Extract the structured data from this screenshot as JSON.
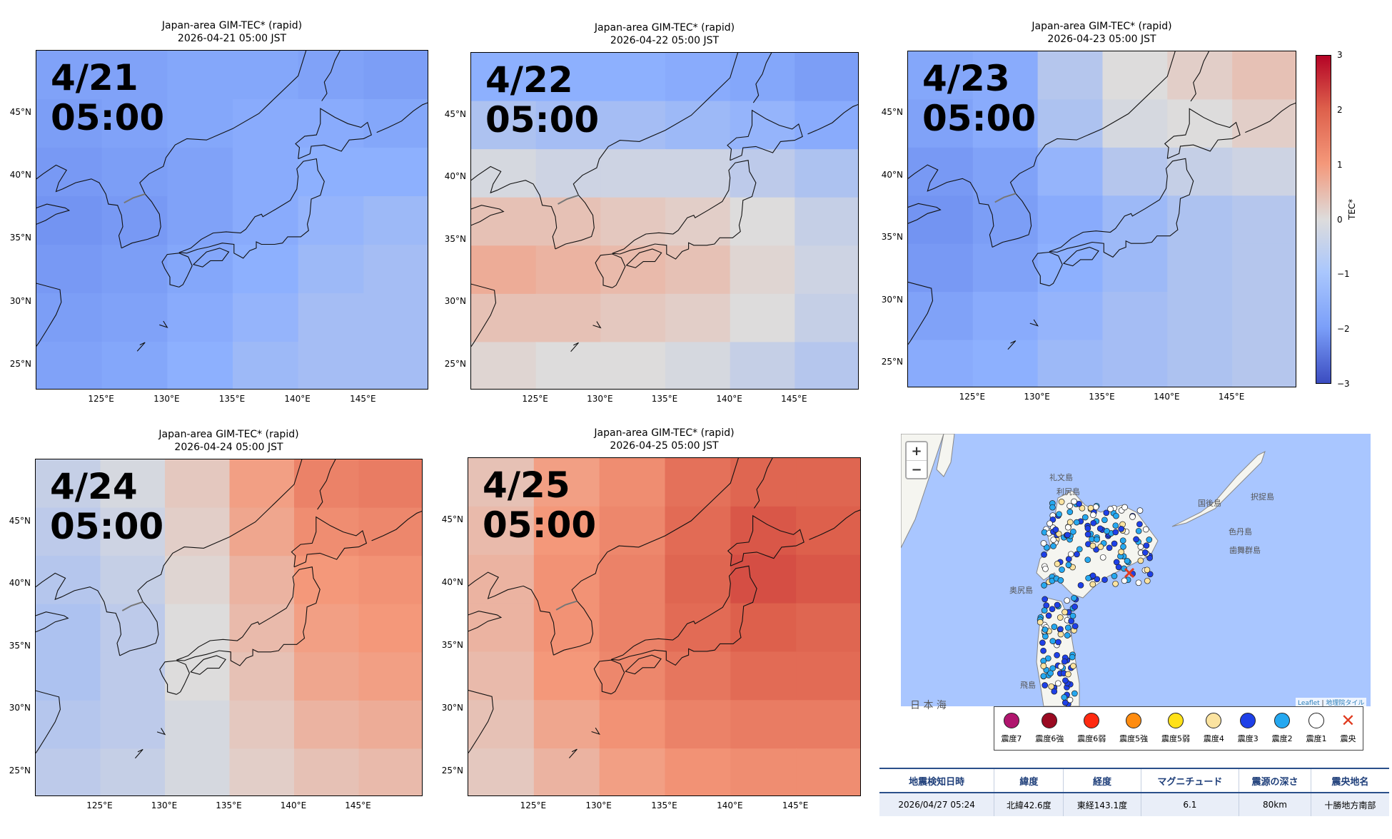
{
  "chart_data": [
    {
      "type": "heatmap",
      "title": "Japan-area GIM-TEC* (rapid)",
      "subtitle": "2026-04-21 05:00 JST",
      "overlay": [
        "4/21",
        "05:00"
      ],
      "x_ticks": [
        "125°E",
        "130°E",
        "135°E",
        "140°E",
        "145°E"
      ],
      "y_ticks": [
        "45°N",
        "40°N",
        "35°N",
        "30°N",
        "25°N"
      ],
      "xlim": [
        120,
        150
      ],
      "ylim": [
        23,
        50
      ],
      "value_range": [
        -3,
        3
      ],
      "grid": [
        [
          -1.3,
          -1.3,
          -1.2,
          -1.2,
          -1.3,
          -1.4
        ],
        [
          -1.4,
          -1.3,
          -1.2,
          -1.1,
          -1.1,
          -1.2
        ],
        [
          -1.5,
          -1.4,
          -1.3,
          -1.1,
          -1.0,
          -1.0
        ],
        [
          -1.6,
          -1.5,
          -1.3,
          -1.1,
          -0.9,
          -0.8
        ],
        [
          -1.5,
          -1.4,
          -1.2,
          -1.0,
          -0.8,
          -0.7
        ],
        [
          -1.4,
          -1.3,
          -1.1,
          -0.9,
          -0.7,
          -0.7
        ],
        [
          -1.3,
          -1.2,
          -1.0,
          -0.8,
          -0.7,
          -0.7
        ]
      ]
    },
    {
      "type": "heatmap",
      "title": "Japan-area GIM-TEC* (rapid)",
      "subtitle": "2026-04-22 05:00 JST",
      "overlay": [
        "4/22",
        "05:00"
      ],
      "x_ticks": [
        "125°E",
        "130°E",
        "135°E",
        "140°E",
        "145°E"
      ],
      "y_ticks": [
        "45°N",
        "40°N",
        "35°N",
        "30°N",
        "25°N"
      ],
      "xlim": [
        120,
        150
      ],
      "ylim": [
        23,
        50
      ],
      "value_range": [
        -3,
        3
      ],
      "grid": [
        [
          -1.0,
          -1.0,
          -1.0,
          -1.1,
          -1.2,
          -1.4
        ],
        [
          -0.6,
          -0.7,
          -0.7,
          -0.8,
          -0.9,
          -1.1
        ],
        [
          -0.1,
          -0.2,
          -0.2,
          -0.2,
          -0.4,
          -0.6
        ],
        [
          0.4,
          0.4,
          0.3,
          0.2,
          0.0,
          -0.3
        ],
        [
          0.7,
          0.6,
          0.5,
          0.4,
          0.1,
          -0.2
        ],
        [
          0.4,
          0.4,
          0.3,
          0.2,
          0.0,
          -0.3
        ],
        [
          0.1,
          0.0,
          0.0,
          -0.1,
          -0.3,
          -0.5
        ]
      ]
    },
    {
      "type": "heatmap",
      "title": "Japan-area GIM-TEC* (rapid)",
      "subtitle": "2026-04-23 05:00 JST",
      "overlay": [
        "4/23",
        "05:00"
      ],
      "x_ticks": [
        "125°E",
        "130°E",
        "135°E",
        "140°E",
        "145°E"
      ],
      "y_ticks": [
        "45°N",
        "40°N",
        "35°N",
        "30°N",
        "25°N"
      ],
      "xlim": [
        120,
        150
      ],
      "ylim": [
        23,
        50
      ],
      "value_range": [
        -3,
        3
      ],
      "grid": [
        [
          -1.2,
          -1.1,
          -0.5,
          0.0,
          0.2,
          0.4
        ],
        [
          -1.3,
          -1.1,
          -0.6,
          -0.1,
          0.0,
          0.2
        ],
        [
          -1.5,
          -1.3,
          -0.9,
          -0.5,
          -0.3,
          -0.2
        ],
        [
          -1.6,
          -1.4,
          -1.1,
          -0.8,
          -0.6,
          -0.5
        ],
        [
          -1.5,
          -1.3,
          -1.0,
          -0.8,
          -0.6,
          -0.5
        ],
        [
          -1.3,
          -1.1,
          -0.9,
          -0.7,
          -0.6,
          -0.5
        ],
        [
          -1.1,
          -1.0,
          -0.8,
          -0.7,
          -0.6,
          -0.5
        ]
      ],
      "colorbar": {
        "label": "TEC*",
        "ticks": [
          "3",
          "2",
          "1",
          "0",
          "−1",
          "−2",
          "−3"
        ]
      }
    },
    {
      "type": "heatmap",
      "title": "Japan-area GIM-TEC* (rapid)",
      "subtitle": "2026-04-24 05:00 JST",
      "overlay": [
        "4/24",
        "05:00"
      ],
      "x_ticks": [
        "125°E",
        "130°E",
        "135°E",
        "140°E",
        "145°E"
      ],
      "y_ticks": [
        "45°N",
        "40°N",
        "35°N",
        "30°N",
        "25°N"
      ],
      "xlim": [
        120,
        150
      ],
      "ylim": [
        23,
        50
      ],
      "value_range": [
        -3,
        3
      ],
      "grid": [
        [
          -0.3,
          -0.1,
          0.3,
          0.9,
          1.4,
          1.5
        ],
        [
          -0.4,
          -0.2,
          0.2,
          0.8,
          1.2,
          1.3
        ],
        [
          -0.5,
          -0.3,
          0.1,
          0.6,
          1.0,
          1.1
        ],
        [
          -0.6,
          -0.4,
          0.0,
          0.5,
          0.9,
          1.0
        ],
        [
          -0.6,
          -0.4,
          0.0,
          0.4,
          0.8,
          0.9
        ],
        [
          -0.5,
          -0.4,
          -0.1,
          0.3,
          0.6,
          0.7
        ],
        [
          -0.4,
          -0.3,
          -0.1,
          0.2,
          0.4,
          0.5
        ]
      ]
    },
    {
      "type": "heatmap",
      "title": "Japan-area GIM-TEC* (rapid)",
      "subtitle": "2026-04-25 05:00 JST",
      "overlay": [
        "4/25",
        "05:00"
      ],
      "x_ticks": [
        "125°E",
        "130°E",
        "135°E",
        "140°E",
        "145°E"
      ],
      "y_ticks": [
        "45°N",
        "40°N",
        "35°N",
        "30°N",
        "25°N"
      ],
      "xlim": [
        120,
        150
      ],
      "ylim": [
        23,
        50
      ],
      "value_range": [
        -3,
        3
      ],
      "grid": [
        [
          0.4,
          0.9,
          1.2,
          1.7,
          1.9,
          1.9
        ],
        [
          0.5,
          1.0,
          1.3,
          1.8,
          2.1,
          2.0
        ],
        [
          0.6,
          1.1,
          1.4,
          1.9,
          2.2,
          2.1
        ],
        [
          0.6,
          1.1,
          1.4,
          1.8,
          2.0,
          1.9
        ],
        [
          0.5,
          1.0,
          1.3,
          1.6,
          1.8,
          1.8
        ],
        [
          0.4,
          0.8,
          1.1,
          1.4,
          1.5,
          1.5
        ],
        [
          0.3,
          0.6,
          0.9,
          1.1,
          1.2,
          1.2
        ]
      ]
    }
  ],
  "map": {
    "zoom_in": "+",
    "zoom_out": "−",
    "labels": {
      "rebun": "礼文島",
      "rishiri": "利尻島",
      "kunashiri": "国後島",
      "etorofu": "択捉島",
      "shikotan": "色丹島",
      "habomai": "歯舞群島",
      "okushiri": "奥尻島",
      "tobi": "飛島",
      "sea": "日 本 海"
    },
    "attribution_leaflet": "Leaflet",
    "attribution_sep": " | ",
    "attribution_gsi": "地理院タイル",
    "legend": [
      {
        "label": "震度7",
        "color": "#b0156e"
      },
      {
        "label": "震度6強",
        "color": "#9a0a22"
      },
      {
        "label": "震度6弱",
        "color": "#ff2a10"
      },
      {
        "label": "震度5強",
        "color": "#ff8c10"
      },
      {
        "label": "震度5弱",
        "color": "#ffe118"
      },
      {
        "label": "震度4",
        "color": "#fbe3a0"
      },
      {
        "label": "震度3",
        "color": "#1e40e8"
      },
      {
        "label": "震度2",
        "color": "#25a8f0"
      },
      {
        "label": "震度1",
        "color": "#ffffff"
      },
      {
        "label": "震央",
        "color": "#e03b1f",
        "icon": "x-mark"
      }
    ]
  },
  "quake_table": {
    "headers": [
      "地震検知日時",
      "緯度",
      "経度",
      "マグニチュード",
      "震源の深さ",
      "震央地名"
    ],
    "row": [
      "2026/04/27 05:24",
      "北緯42.6度",
      "東経143.1度",
      "6.1",
      "80km",
      "十勝地方南部"
    ]
  }
}
